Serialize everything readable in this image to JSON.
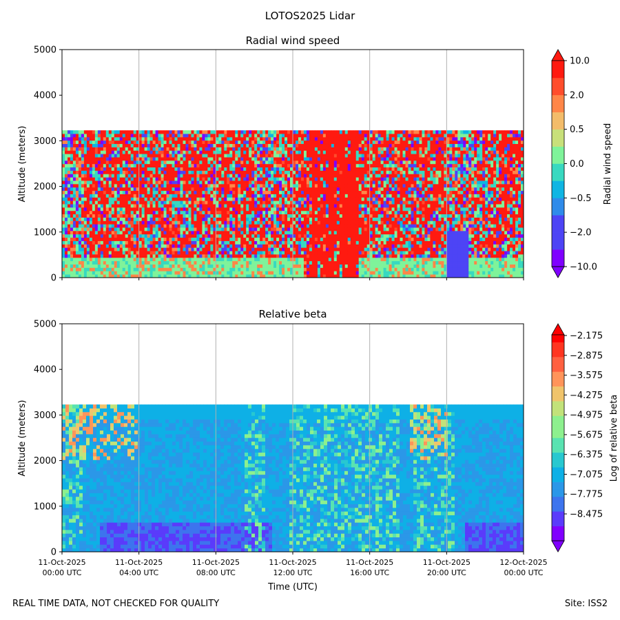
{
  "title": "LOTOS2025 Lidar",
  "footer": {
    "left": "REAL TIME DATA, NOT CHECKED FOR QUALITY",
    "right": "Site: ISS2"
  },
  "colors": {
    "rainbow": [
      "#8000ff",
      "#5a3bfb",
      "#3d74ee",
      "#2b97e8",
      "#0eb0e6",
      "#28c8d0",
      "#59e3b1",
      "#8df08e",
      "#c2e27a",
      "#f0c46c",
      "#ff945a",
      "#ff6040",
      "#ff3520",
      "#ff0000"
    ],
    "radial_bands": [
      "#7f00ff",
      "#4d44f5",
      "#2f8bea",
      "#0fb5e3",
      "#38d9c0",
      "#7ff39a",
      "#c8e07a",
      "#f3bc6a",
      "#ff8648",
      "#ff4d2c",
      "#ff1a10"
    ],
    "grid": "#b0b0b0"
  },
  "chart_data": [
    {
      "type": "heatmap",
      "title": "Radial wind speed",
      "xlabel": "",
      "ylabel": "Altitude (meters)",
      "ylim": [
        0,
        5000
      ],
      "yticks": [
        0,
        1000,
        2000,
        3000,
        4000,
        5000
      ],
      "xlim_hours": [
        0,
        24
      ],
      "data_top_altitude_m": 3230,
      "colorbar": {
        "label": "Radial wind speed",
        "ticks": [
          "10.0",
          "2.0",
          "0.5",
          "0.0",
          "−0.5",
          "−2.0",
          "−10.0"
        ],
        "extend": "both"
      }
    },
    {
      "type": "heatmap",
      "title": "Relative beta",
      "xlabel": "Time (UTC)",
      "ylabel": "Altitude (meters)",
      "ylim": [
        0,
        5000
      ],
      "yticks": [
        0,
        1000,
        2000,
        3000,
        4000,
        5000
      ],
      "xlim_hours": [
        0,
        24
      ],
      "data_top_altitude_m": 3230,
      "colorbar": {
        "label": "Log of relative beta",
        "ticks": [
          "−2.175",
          "−2.875",
          "−3.575",
          "−4.275",
          "−4.975",
          "−5.675",
          "−6.375",
          "−7.075",
          "−7.775",
          "−8.475"
        ],
        "range": [
          -9.0,
          -2.0
        ],
        "extend": "both"
      }
    }
  ],
  "x_ticks": [
    {
      "hours": 0,
      "date": "11-Oct-2025",
      "time": "00:00 UTC"
    },
    {
      "hours": 4,
      "date": "11-Oct-2025",
      "time": "04:00 UTC"
    },
    {
      "hours": 8,
      "date": "11-Oct-2025",
      "time": "08:00 UTC"
    },
    {
      "hours": 12,
      "date": "11-Oct-2025",
      "time": "12:00 UTC"
    },
    {
      "hours": 16,
      "date": "11-Oct-2025",
      "time": "16:00 UTC"
    },
    {
      "hours": 20,
      "date": "11-Oct-2025",
      "time": "20:00 UTC"
    },
    {
      "hours": 24,
      "date": "12-Oct-2025",
      "time": "00:00 UTC"
    }
  ]
}
